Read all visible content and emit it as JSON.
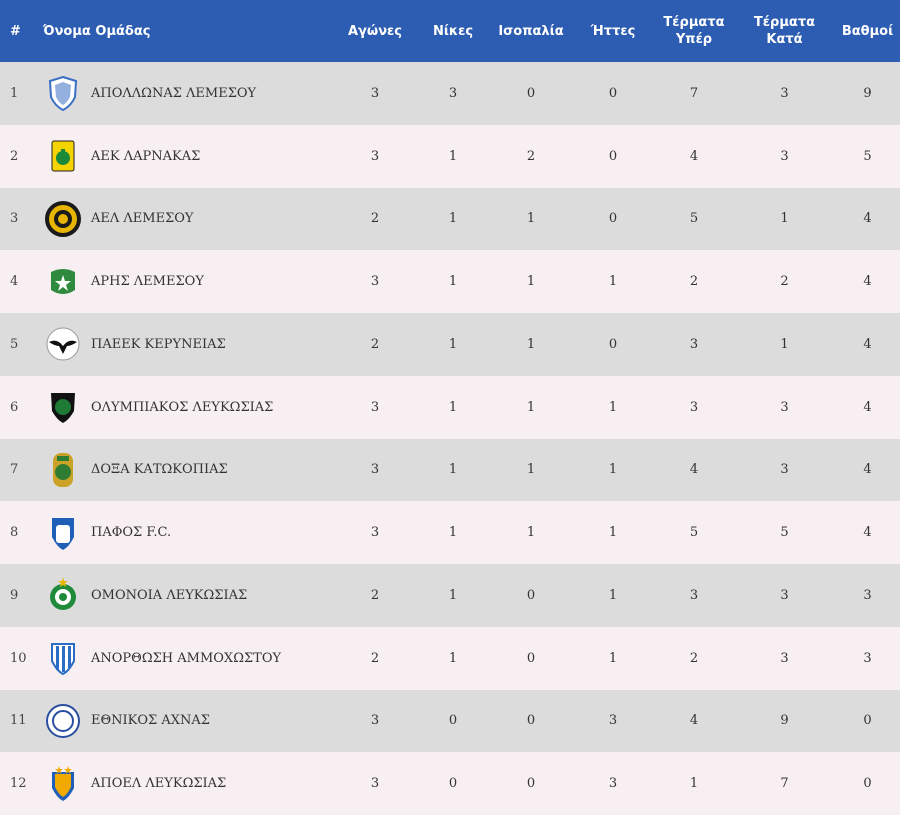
{
  "header": {
    "rank": "#",
    "team": "Όνομα Ομάδας",
    "played": "Αγώνες",
    "wins": "Νίκες",
    "draws": "Ισοπαλία",
    "losses": "Ήττες",
    "goals_for_line1": "Τέρματα",
    "goals_for_line2": "Υπέρ",
    "goals_against_line1": "Τέρματα",
    "goals_against_line2": "Κατά",
    "points": "Βαθμοί"
  },
  "rows": [
    {
      "rank": "1",
      "team": "ΑΠΟΛΛΩΝΑΣ ΛΕΜΕΣΟΥ",
      "played": "3",
      "wins": "3",
      "draws": "0",
      "losses": "0",
      "gf": "7",
      "ga": "3",
      "pts": "9",
      "crest": "apollon-crest-icon",
      "c1": "#3b6fc4",
      "c2": "#ffffff"
    },
    {
      "rank": "2",
      "team": "ΑΕΚ ΛΑΡΝΑΚΑΣ",
      "played": "3",
      "wins": "1",
      "draws": "2",
      "losses": "0",
      "gf": "4",
      "ga": "3",
      "pts": "5",
      "crest": "aek-crest-icon",
      "c1": "#f4d300",
      "c2": "#1a8a3a"
    },
    {
      "rank": "3",
      "team": "ΑΕΛ ΛΕΜΕΣΟΥ",
      "played": "2",
      "wins": "1",
      "draws": "1",
      "losses": "0",
      "gf": "5",
      "ga": "1",
      "pts": "4",
      "crest": "ael-crest-icon",
      "c1": "#1a1a1a",
      "c2": "#e7b400"
    },
    {
      "rank": "4",
      "team": "ΑΡΗΣ ΛΕΜΕΣΟΥ",
      "played": "3",
      "wins": "1",
      "draws": "1",
      "losses": "1",
      "gf": "2",
      "ga": "2",
      "pts": "4",
      "crest": "aris-crest-icon",
      "c1": "#2e8b3e",
      "c2": "#ffffff"
    },
    {
      "rank": "5",
      "team": "ΠΑΕΕΚ ΚΕΡΥΝΕΙΑΣ",
      "played": "2",
      "wins": "1",
      "draws": "1",
      "losses": "0",
      "gf": "3",
      "ga": "1",
      "pts": "4",
      "crest": "paeek-crest-icon",
      "c1": "#ffffff",
      "c2": "#111111"
    },
    {
      "rank": "6",
      "team": "ΟΛΥΜΠΙΑΚΟΣ ΛΕΥΚΩΣΙΑΣ",
      "played": "3",
      "wins": "1",
      "draws": "1",
      "losses": "1",
      "gf": "3",
      "ga": "3",
      "pts": "4",
      "crest": "olympiakos-crest-icon",
      "c1": "#111111",
      "c2": "#1e7a35"
    },
    {
      "rank": "7",
      "team": "ΔΟΞΑ ΚΑΤΩΚΟΠΙΑΣ",
      "played": "3",
      "wins": "1",
      "draws": "1",
      "losses": "1",
      "gf": "4",
      "ga": "3",
      "pts": "4",
      "crest": "doxa-crest-icon",
      "c1": "#2e7d32",
      "c2": "#c9a227"
    },
    {
      "rank": "8",
      "team": "ΠΑΦΟΣ F.C.",
      "played": "3",
      "wins": "1",
      "draws": "1",
      "losses": "1",
      "gf": "5",
      "ga": "5",
      "pts": "4",
      "crest": "pafos-crest-icon",
      "c1": "#1f5fb8",
      "c2": "#ffffff"
    },
    {
      "rank": "9",
      "team": "ΟΜΟΝΟΙΑ ΛΕΥΚΩΣΙΑΣ",
      "played": "2",
      "wins": "1",
      "draws": "0",
      "losses": "1",
      "gf": "3",
      "ga": "3",
      "pts": "3",
      "crest": "omonoia-crest-icon",
      "c1": "#1e8a3a",
      "c2": "#ffffff"
    },
    {
      "rank": "10",
      "team": "ΑΝΟΡΘΩΣΗ ΑΜΜΟΧΩΣΤΟΥ",
      "played": "2",
      "wins": "1",
      "draws": "0",
      "losses": "1",
      "gf": "2",
      "ga": "3",
      "pts": "3",
      "crest": "anorthosis-crest-icon",
      "c1": "#2b6cc4",
      "c2": "#ffffff"
    },
    {
      "rank": "11",
      "team": "ΕΘΝΙΚΟΣ ΑΧΝΑΣ",
      "played": "3",
      "wins": "0",
      "draws": "0",
      "losses": "3",
      "gf": "4",
      "ga": "9",
      "pts": "0",
      "crest": "ethnikos-crest-icon",
      "c1": "#ffffff",
      "c2": "#2a4fa0"
    },
    {
      "rank": "12",
      "team": "ΑΠΟΕΛ ΛΕΥΚΩΣΙΑΣ",
      "played": "3",
      "wins": "0",
      "draws": "0",
      "losses": "3",
      "gf": "1",
      "ga": "7",
      "pts": "0",
      "crest": "apoel-crest-icon",
      "c1": "#f2a900",
      "c2": "#1f5fb8"
    }
  ],
  "colors": {
    "header_bg": "#2d5db2",
    "row_odd": "#dcdcdc",
    "row_even": "#f7eff1"
  }
}
